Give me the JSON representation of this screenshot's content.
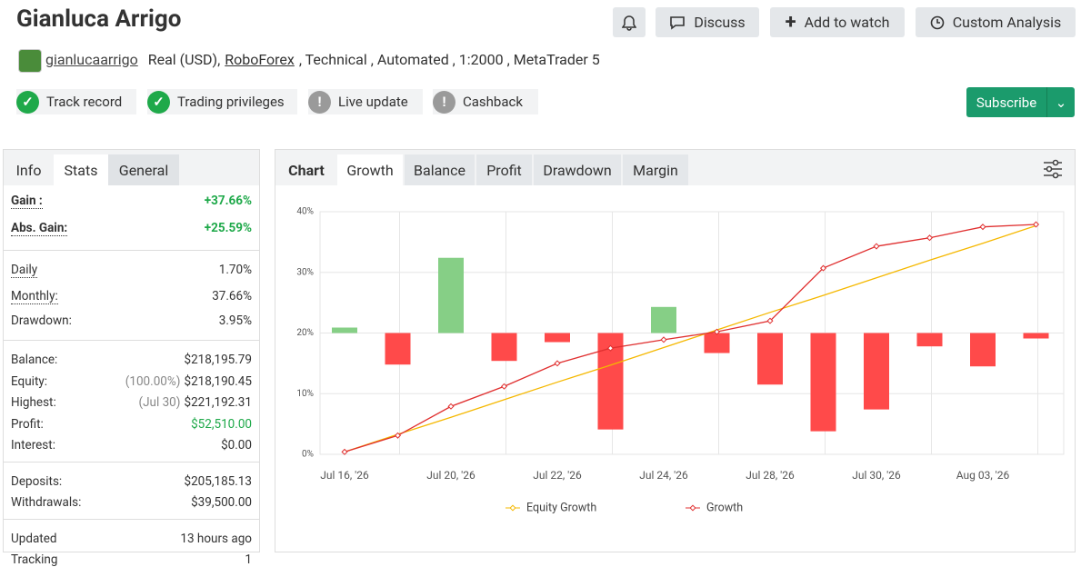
{
  "header": {
    "title": "Gianluca Arrigo",
    "buttons": [
      "Discuss",
      "Add to watch",
      "Custom Analysis"
    ],
    "username": "gianlucaarrigo",
    "account_info": [
      "Real (USD)",
      ",",
      "RoboForex",
      ", Technical , Automated , 1:2000 , MetaTrader 5"
    ],
    "subscribe": "Subscribe"
  },
  "badges": [
    {
      "label": "Track record",
      "status": "ok"
    },
    {
      "label": "Trading privileges",
      "status": "ok"
    },
    {
      "label": "Live update",
      "status": "warn"
    },
    {
      "label": "Cashback",
      "status": "warn"
    }
  ],
  "stats": {
    "tabs": [
      "Info",
      "Stats",
      "General"
    ],
    "groups": [
      {
        "rows": [
          {
            "label": "Gain :",
            "value": "+37.66%"
          },
          {
            "label": "Abs. Gain:",
            "value": "+25.59%"
          }
        ]
      },
      {
        "rows": [
          {
            "label": "Daily",
            "value": "1.70%"
          },
          {
            "label": "Monthly:",
            "value": "37.66%"
          },
          {
            "label": "Drawdown:",
            "value": "3.95%"
          }
        ]
      },
      {
        "rows": [
          {
            "label": "Balance:",
            "value": "$218,195.79"
          },
          {
            "label": "Equity:",
            "note": "(100.00%)",
            "value": "$218,190.45"
          },
          {
            "label": "Highest:",
            "note": "(Jul 30)",
            "value": "$221,192.31"
          },
          {
            "label": "Profit:",
            "value": "$52,510.00"
          },
          {
            "label": "Interest:",
            "value": "$0.00"
          }
        ]
      },
      {
        "rows": [
          {
            "label": "Deposits:",
            "value": "$205,185.13"
          },
          {
            "label": "Withdrawals:",
            "value": "$39,500.00"
          }
        ]
      },
      {
        "rows": [
          {
            "label": "Updated",
            "value": "13 hours ago"
          },
          {
            "label": "Tracking",
            "value": "1"
          }
        ]
      }
    ]
  },
  "chart_tabs": [
    "Chart",
    "Growth",
    "Balance",
    "Profit",
    "Drawdown",
    "Margin"
  ],
  "chart_data": {
    "type": "line",
    "categories": [
      "Jul 16, '26",
      null,
      "Jul 20, '26",
      null,
      "Jul 22, '26",
      null,
      "Jul 24, '26",
      null,
      "Jul 28, '26",
      null,
      "Jul 30, '26",
      null,
      "Aug 03, '26",
      null
    ],
    "ylim": [
      0,
      40
    ],
    "yticks": [
      {
        "value": 0,
        "label": "0%"
      },
      {
        "value": 10,
        "label": "10%"
      },
      {
        "value": 20,
        "label": "20%"
      },
      {
        "value": 30,
        "label": "30%"
      },
      {
        "value": 40,
        "label": "40%"
      }
    ],
    "grid": true,
    "series": [
      {
        "name": "Equity Growth",
        "color": "#f5b800",
        "values": [
          0.4,
          3.3,
          6.1,
          9.0,
          11.9,
          14.7,
          17.6,
          20.5,
          23.4,
          26.2,
          29.1,
          32.0,
          34.8,
          37.7
        ]
      },
      {
        "name": "Growth",
        "color": "#e03030",
        "values": [
          0.4,
          3.1,
          7.9,
          11.2,
          15.0,
          17.5,
          18.9,
          20.2,
          22.0,
          30.7,
          34.3,
          35.7,
          37.5,
          37.9
        ]
      }
    ],
    "bars": {
      "axis": "y2",
      "positive_color": "#86cf86",
      "negative_color": "#ff4a4a",
      "values": [
        0.9,
        -5.2,
        12.4,
        -4.6,
        -1.5,
        -15.9,
        4.3,
        -3.3,
        -8.5,
        -16.2,
        -12.6,
        -2.2,
        -5.5,
        -0.9
      ]
    },
    "y2lim": [
      -20,
      20
    ],
    "legend": "bottom"
  }
}
